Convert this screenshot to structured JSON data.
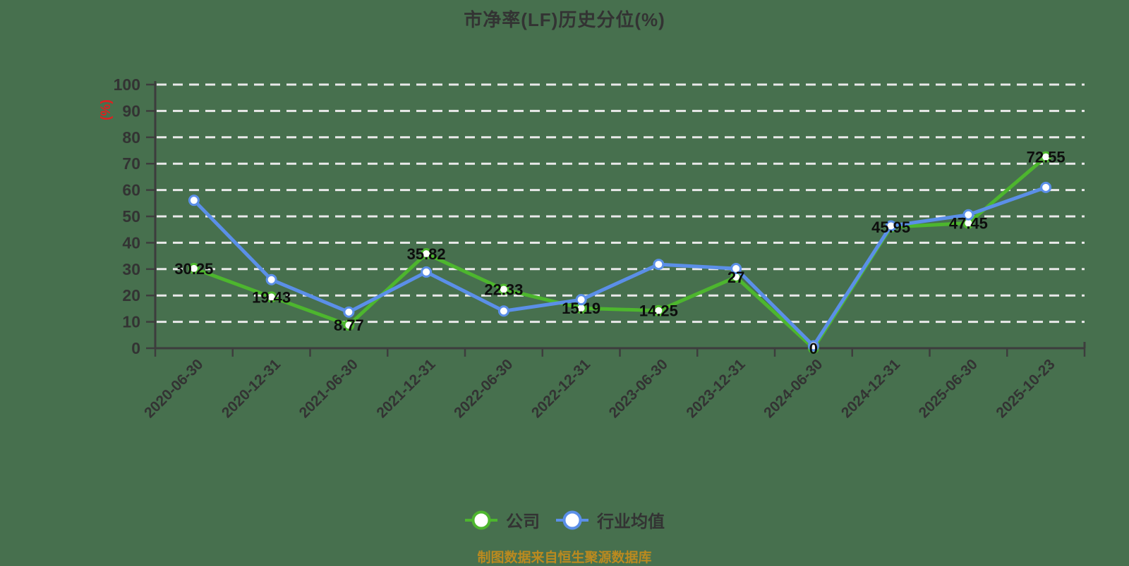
{
  "page": {
    "background": "#47704e"
  },
  "title": {
    "text": "市净率(LF)历史分位(%)",
    "color": "#333333"
  },
  "axis": {
    "line_color": "#3d3d3d",
    "label_color": "#333333",
    "grid_color": "#e9e9e9",
    "unit_label": "(%)",
    "unit_color": "#e01f1f",
    "value_label_color": "#0d0d0d"
  },
  "chart_data": {
    "type": "line",
    "title": "市净率(LF)历史分位(%)",
    "xlabel": "",
    "ylabel": "(%)",
    "ylim": [
      0,
      100
    ],
    "ytick_step": 10,
    "grid": "horizontal-dashed-white",
    "legend_position": "bottom",
    "categories": [
      "2020-06-30",
      "2020-12-31",
      "2021-06-30",
      "2021-12-31",
      "2022-06-30",
      "2022-12-31",
      "2023-06-30",
      "2023-12-31",
      "2024-06-30",
      "2024-12-31",
      "2025-06-30",
      "2025-10-23"
    ],
    "series": [
      {
        "name": "公司",
        "color": "#4db62e",
        "values": [
          30.25,
          19.43,
          8.77,
          35.82,
          22.33,
          15.19,
          14.25,
          27,
          0,
          45.95,
          47.45,
          72.55
        ],
        "labels": [
          "30.25",
          "19.43",
          "8.77",
          "35.82",
          "22.33",
          "15.19",
          "14.25",
          "27",
          "0",
          "45.95",
          "47.45",
          "72.55"
        ],
        "labels_shown": true
      },
      {
        "name": "行业均值",
        "color": "#5b8fe8",
        "values": [
          56.1,
          26.0,
          13.7,
          28.9,
          14.1,
          18.4,
          31.8,
          30.2,
          0.9,
          46.4,
          50.6,
          61.0
        ],
        "labels_shown": false
      }
    ]
  },
  "legend": {
    "items": [
      {
        "label": "公司",
        "color": "#4db62e"
      },
      {
        "label": "行业均值",
        "color": "#5b8fe8"
      }
    ]
  },
  "footer": {
    "text": "制图数据来自恒生聚源数据库",
    "color": "#bb8a1f"
  }
}
